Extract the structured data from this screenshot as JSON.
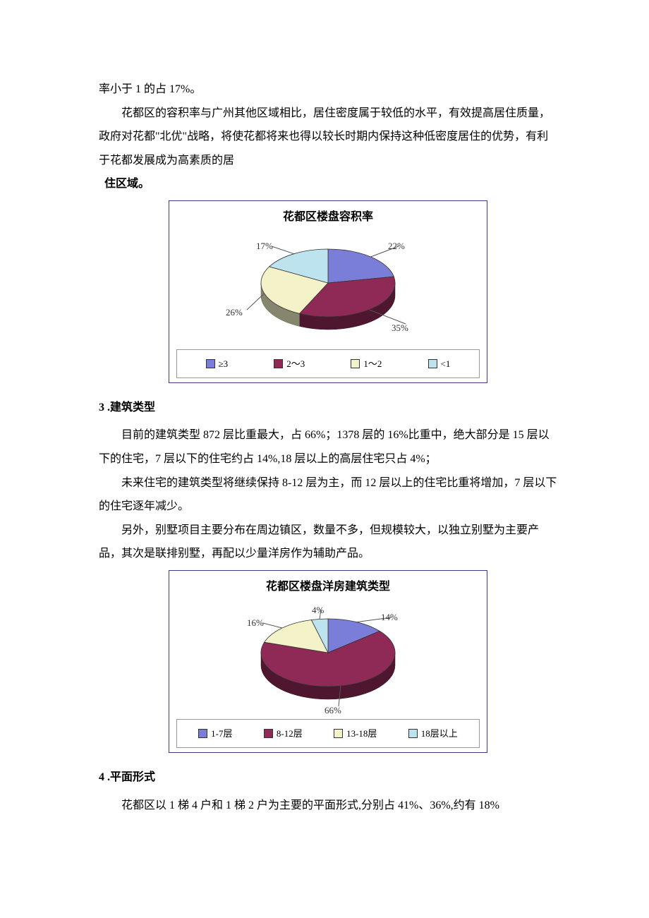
{
  "text": {
    "p1": "率小于 1 的占 17%。",
    "p2": "花都区的容积率与广州其他区域相比，居住密度属于较低的水平，有效提高居住质量，政府对花都\"北优\"战略，将使花都将来也得以较长时期内保持这种低密度居住的优势，有利于花都发展成为高素质的居",
    "p2b": "住区域。",
    "h3": "3 .建筑类型",
    "p3": "目前的建筑类型 872 层比重最大，占 66%；1378 层的 16%比重中，绝大部分是 15 层以下的住宅，7 层以下的住宅约占 14%,18 层以上的高层住宅只占 4%；",
    "p4": "未来住宅的建筑类型将继续保持 8-12 层为主，而 12 层以上的住宅比重将增加，7 层以下的住宅逐年减少。",
    "p5": "另外，别墅项目主要分布在周边镇区，数量不多，但规模较大，以独立别墅为主要产品，其次是联排别墅，再配以少量洋房作为辅助产品。",
    "h4": "4 .平面形式",
    "p6": "花都区以 1 梯 4 户和 1 梯 2 户为主要的平面形式,分别占 41%、36%,约有 18%"
  },
  "chart1": {
    "title": "花都区楼盘容积率",
    "type": "pie-3d",
    "slices": [
      {
        "label": "≥3",
        "value": 22,
        "color": "#7a7ed8",
        "pct": "22%"
      },
      {
        "label": "2～3",
        "value": 35,
        "color": "#8f2a56",
        "pct": "35%"
      },
      {
        "label": "1～2",
        "value": 26,
        "color": "#f4f2c9",
        "pct": "26%"
      },
      {
        "label": "<1",
        "value": 17,
        "color": "#bde4ee",
        "pct": "17%"
      }
    ],
    "legend_prefix": [
      "■",
      "■",
      "□",
      "□"
    ],
    "background": "#ffffff",
    "border_color": "#3a3a8a",
    "side_dark": "#5a1a3a"
  },
  "chart2": {
    "title": "花都区楼盘洋房建筑类型",
    "type": "pie-3d",
    "slices": [
      {
        "label": "1-7层",
        "value": 14,
        "color": "#7a7ed8",
        "pct": "14%"
      },
      {
        "label": "8-12层",
        "value": 66,
        "color": "#8f2a56",
        "pct": "66%"
      },
      {
        "label": "13-18层",
        "value": 16,
        "color": "#f4f2c9",
        "pct": "16%"
      },
      {
        "label": "18层以上",
        "value": 4,
        "color": "#bde4ee",
        "pct": "4%"
      }
    ],
    "legend_prefix": [
      "■",
      "■",
      "□",
      "□"
    ],
    "background": "#ffffff",
    "border_color": "#3a3a8a",
    "side_dark": "#5a1a3a"
  }
}
